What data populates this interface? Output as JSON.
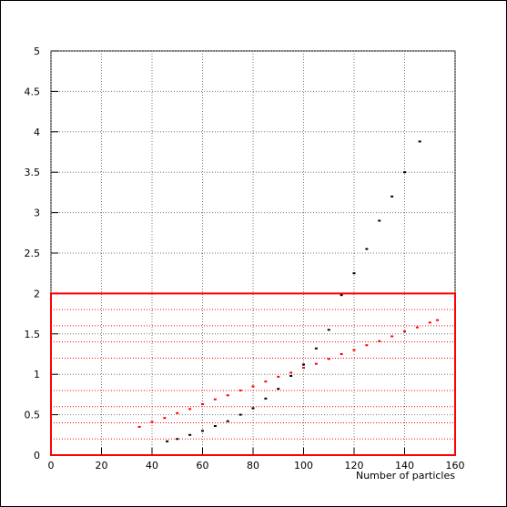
{
  "chart_data": {
    "type": "scatter",
    "x_label": "Number of particles",
    "xlim": [
      0,
      160
    ],
    "xticks": [
      0,
      20,
      40,
      60,
      80,
      100,
      120,
      140,
      160
    ],
    "ylim": [
      0,
      5
    ],
    "yticks": [
      0,
      0.5,
      1,
      1.5,
      2,
      2.5,
      3,
      3.5,
      4,
      4.5,
      5
    ],
    "grid": true,
    "series": [
      {
        "color": "#000000",
        "x": [
          46,
          50,
          55,
          60,
          65,
          70,
          75,
          80,
          85,
          90,
          95,
          100,
          105,
          110,
          115,
          120,
          125,
          130,
          135,
          140,
          146
        ],
        "values": [
          0.17,
          0.2,
          0.25,
          0.3,
          0.36,
          0.42,
          0.5,
          0.58,
          0.7,
          0.82,
          0.98,
          1.12,
          1.32,
          1.55,
          1.98,
          2.25,
          2.55,
          2.9,
          3.2,
          3.5,
          3.88
        ]
      },
      {
        "color": "#ff0000",
        "x": [
          35,
          40,
          45,
          50,
          55,
          60,
          65,
          70,
          75,
          80,
          85,
          90,
          95,
          100,
          105,
          110,
          115,
          120,
          125,
          130,
          135,
          140,
          145,
          150,
          153
        ],
        "values": [
          0.35,
          0.41,
          0.46,
          0.52,
          0.57,
          0.63,
          0.69,
          0.74,
          0.8,
          0.85,
          0.91,
          0.97,
          1.02,
          1.08,
          1.13,
          1.19,
          1.25,
          1.3,
          1.36,
          1.41,
          1.47,
          1.53,
          1.58,
          1.64,
          1.67
        ]
      }
    ],
    "region": {
      "color": "#ff0000",
      "xlim": [
        0,
        160
      ],
      "ylim": [
        0,
        2
      ],
      "yticks": [
        0.2,
        0.4,
        0.6,
        0.8,
        1.2,
        1.4,
        1.6,
        1.8
      ]
    }
  }
}
